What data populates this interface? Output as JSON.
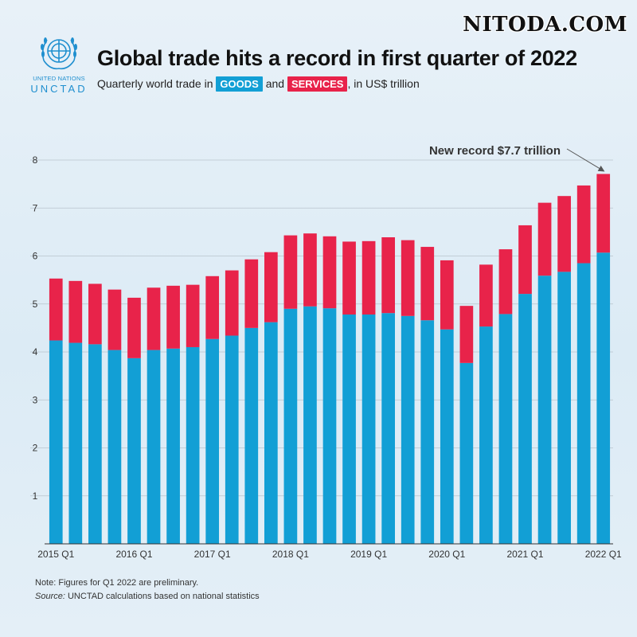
{
  "watermark": "NITODA.COM",
  "logo": {
    "line1": "UNITED NATIONS",
    "line2": "UNCTAD"
  },
  "header": {
    "title": "Global trade hits a record in first quarter of 2022",
    "subtitle_pre": "Quarterly world trade in",
    "goods_label": "GOODS",
    "subtitle_mid": "and",
    "services_label": "SERVICES",
    "subtitle_post": ", in US$ trillion"
  },
  "colors": {
    "goods": "#129fd5",
    "services": "#e8234a",
    "grid": "#b8c4cc"
  },
  "annotation": {
    "text": "New record $7.7 trillion",
    "target_index": 29
  },
  "footer": {
    "note": "Note: Figures for Q1 2022 are preliminary.",
    "source_label": "Source:",
    "source_text": "UNCTAD calculations based on national statistics"
  },
  "chart_data": {
    "type": "bar",
    "stacked": true,
    "title": "Global trade hits a record in first quarter of 2022",
    "xlabel": "",
    "ylabel": "",
    "ylim": [
      0,
      8
    ],
    "yticks": [
      1,
      2,
      3,
      4,
      5,
      6,
      7,
      8
    ],
    "grid": true,
    "categories": [
      "2015 Q1",
      "2015 Q2",
      "2015 Q3",
      "2015 Q4",
      "2016 Q1",
      "2016 Q2",
      "2016 Q3",
      "2016 Q4",
      "2017 Q1",
      "2017 Q2",
      "2017 Q3",
      "2017 Q4",
      "2018 Q1",
      "2018 Q2",
      "2018 Q3",
      "2018 Q4",
      "2019 Q1",
      "2019 Q2",
      "2019 Q3",
      "2019 Q4",
      "2020 Q1",
      "2020 Q2",
      "2020 Q3",
      "2020 Q4",
      "2021 Q1",
      "2021 Q2",
      "2021 Q3",
      "2021 Q4",
      "2022 Q1"
    ],
    "xtick_labels": [
      {
        "index": 0,
        "label": "2015 Q1"
      },
      {
        "index": 4,
        "label": "2016 Q1"
      },
      {
        "index": 8,
        "label": "2017 Q1"
      },
      {
        "index": 12,
        "label": "2018 Q1"
      },
      {
        "index": 16,
        "label": "2019 Q1"
      },
      {
        "index": 20,
        "label": "2020 Q1"
      },
      {
        "index": 24,
        "label": "2021 Q1"
      },
      {
        "index": 28,
        "label": "2022 Q1"
      }
    ],
    "series": [
      {
        "name": "GOODS",
        "values": [
          4.24,
          4.19,
          4.16,
          4.04,
          3.87,
          4.04,
          4.07,
          4.1,
          4.27,
          4.34,
          4.5,
          4.62,
          4.9,
          4.95,
          4.91,
          4.78,
          4.78,
          4.81,
          4.75,
          4.66,
          4.47,
          3.77,
          4.53,
          4.79,
          5.21,
          5.59,
          5.67,
          5.85,
          6.07
        ]
      },
      {
        "name": "SERVICES",
        "values": [
          1.29,
          1.29,
          1.26,
          1.26,
          1.26,
          1.3,
          1.31,
          1.3,
          1.31,
          1.36,
          1.43,
          1.46,
          1.53,
          1.52,
          1.5,
          1.52,
          1.53,
          1.58,
          1.58,
          1.53,
          1.44,
          1.19,
          1.29,
          1.35,
          1.43,
          1.52,
          1.58,
          1.62,
          1.64
        ]
      }
    ]
  }
}
